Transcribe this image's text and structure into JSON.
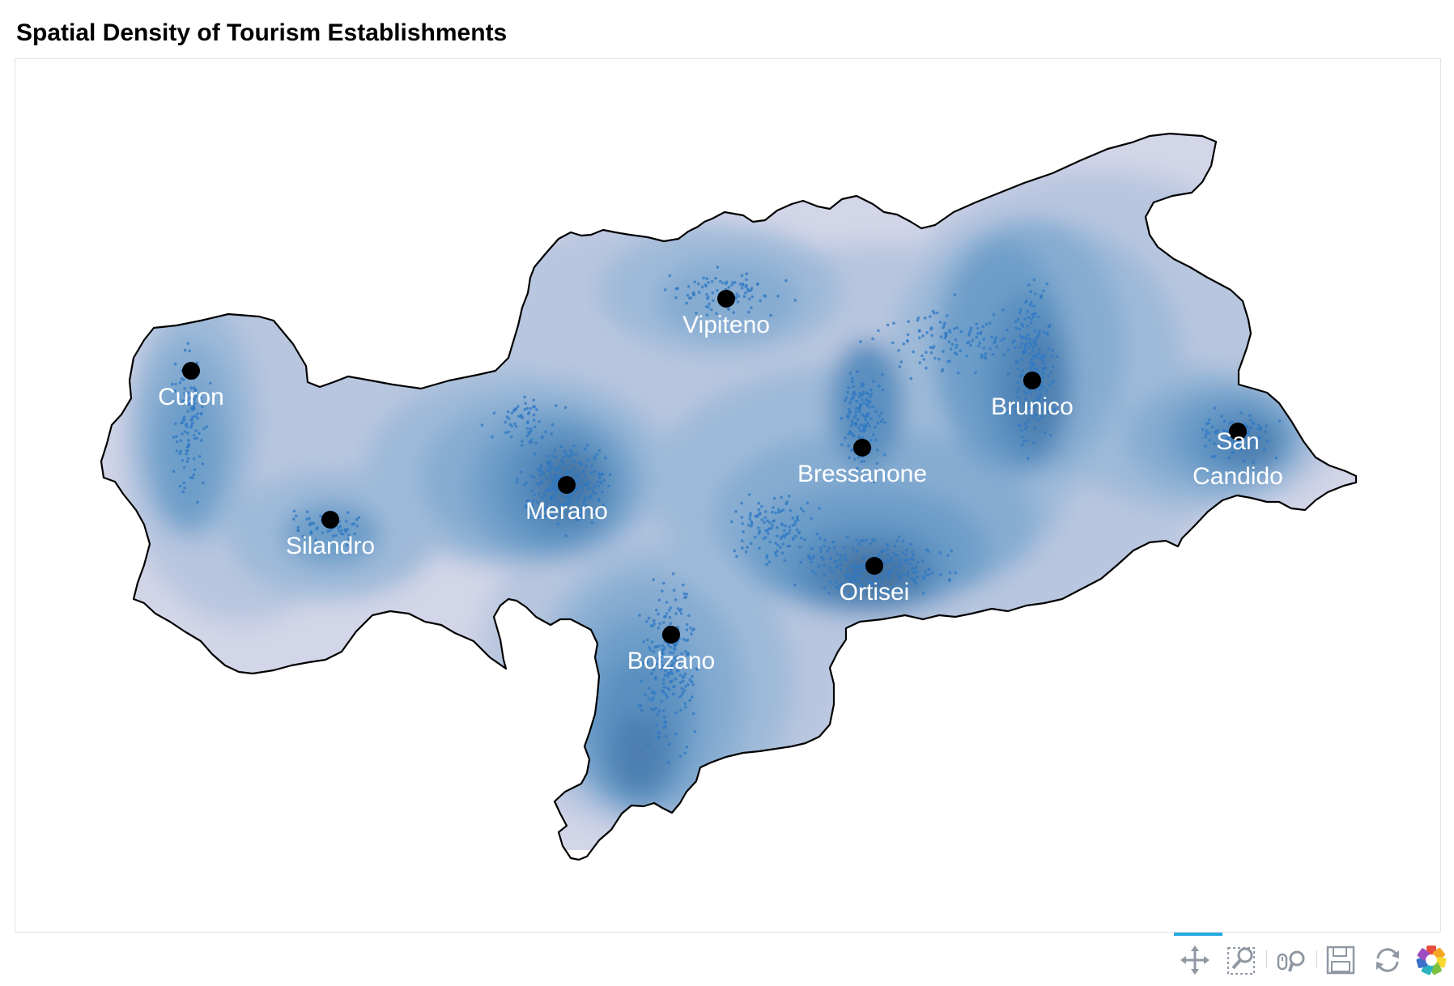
{
  "title": "Spatial Density of Tourism Establishments",
  "colors": {
    "outline": "#000000",
    "fill_levels": [
      "#d3d5e8",
      "#b8c6df",
      "#9fbad8",
      "#86acd1",
      "#6d9ec9",
      "#5a8fbf",
      "#4d80b0",
      "#46729c"
    ],
    "points": "#2f78c4",
    "city_marker": "#000000",
    "city_label": "#ffffff",
    "toolbar_icon": "#9aa3ad",
    "toolbar_active": "#26aae1"
  },
  "cities": [
    {
      "name": "Curon"
    },
    {
      "name": "Silandro"
    },
    {
      "name": "Merano"
    },
    {
      "name": "Vipiteno"
    },
    {
      "name": "Bolzano"
    },
    {
      "name": "Bressanone"
    },
    {
      "name": "Ortisei"
    },
    {
      "name": "Brunico"
    },
    {
      "name": "San Candido",
      "lines": [
        "San",
        "Candido"
      ]
    }
  ],
  "toolbar": {
    "tools": [
      {
        "name": "pan-tool",
        "icon": "pan-icon",
        "active": true
      },
      {
        "name": "box-zoom-tool",
        "icon": "box-zoom-icon",
        "active": false
      },
      {
        "name": "wheel-zoom-tool",
        "icon": "wheel-zoom-icon",
        "active": false
      },
      {
        "name": "save-tool",
        "icon": "save-icon",
        "active": false
      },
      {
        "name": "reset-tool",
        "icon": "reset-icon",
        "active": false
      },
      {
        "name": "bokeh-logo",
        "icon": "bokeh-logo-icon",
        "active": false
      }
    ]
  }
}
